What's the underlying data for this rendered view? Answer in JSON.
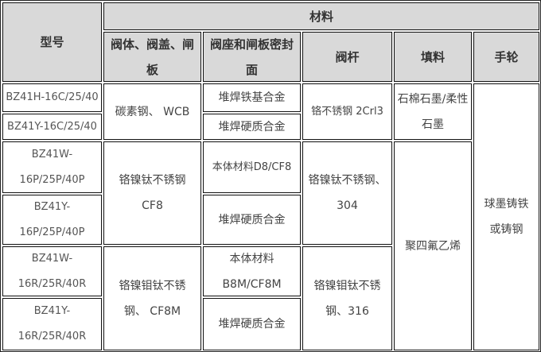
{
  "header": {
    "model": "型号",
    "materials": "材料",
    "body_bonnet_gate": "阀体、阀盖、闸板",
    "seat_gate_seal": "阀座和闸板密封面",
    "stem": "阀杆",
    "packing": "填料",
    "handwheel": "手轮"
  },
  "rows": {
    "models": [
      "BZ41H-16C/25/40",
      "BZ41Y-16C/25/40",
      "BZ41W-16P/25P/40P",
      "BZ41Y-16P/25P/40P",
      "BZ41W-16R/25R/40R",
      "BZ41Y-16R/25R/40R"
    ],
    "body": [
      "碳素钢、 WCB",
      "铬镍钛不锈钢CF8",
      "铬镍钼钛不锈钢、 CF8M"
    ],
    "seal": [
      "堆焊铁基合金",
      "堆焊硬质合金",
      "本体材料D8/CF8",
      "堆焊硬质合金",
      "本体材料B8M/CF8M",
      "堆焊硬质合金"
    ],
    "stem": [
      "铬不锈钢 2Crl3",
      "铬镍钛不锈钢、304",
      "铬镍钼钛不锈钢、316"
    ],
    "packing": [
      "石棉石墨/柔性石墨",
      "聚四氟乙烯"
    ],
    "handwheel": "球墨铸铁或铸钢"
  }
}
